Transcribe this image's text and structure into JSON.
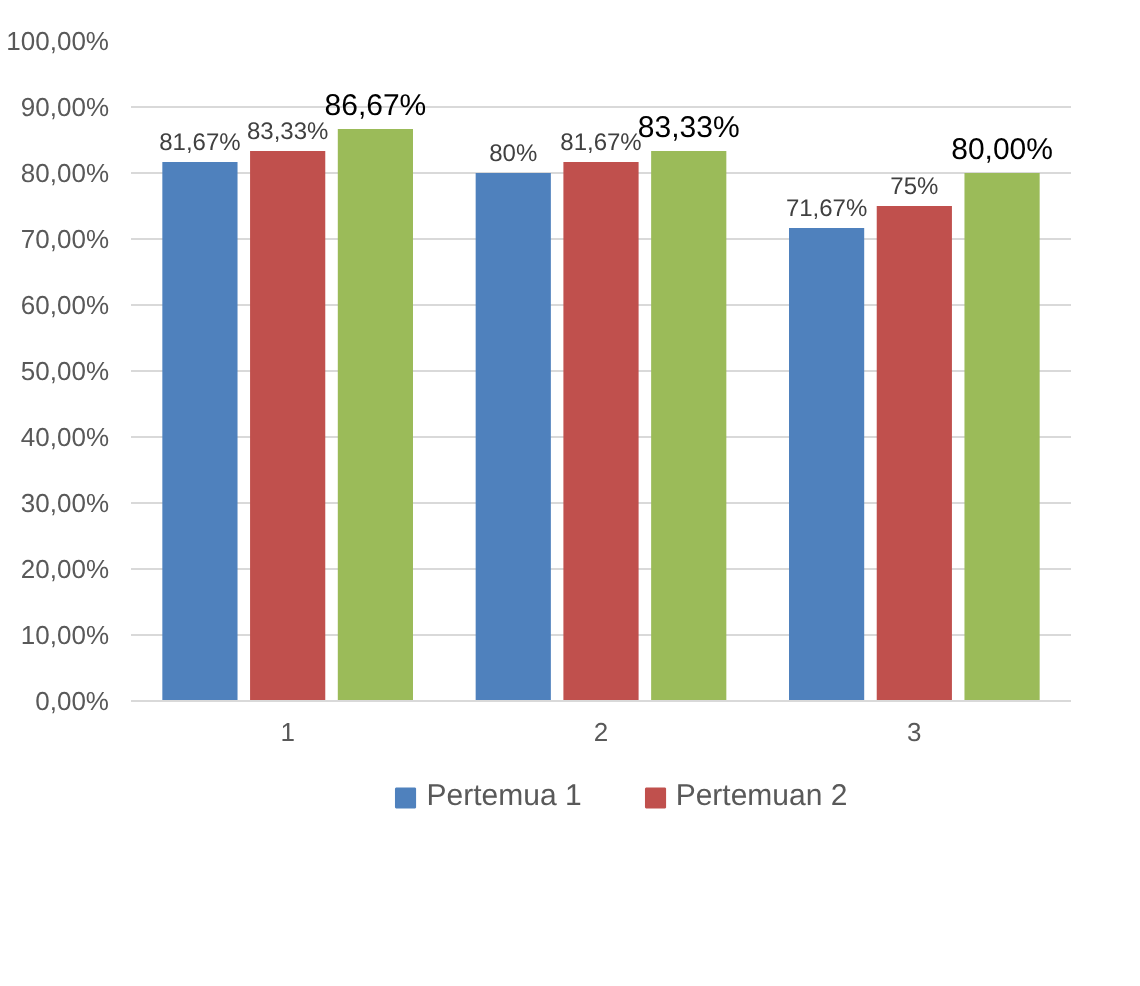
{
  "chart_data": {
    "type": "bar",
    "categories": [
      "1",
      "2",
      "3"
    ],
    "ylim": [
      0,
      100
    ],
    "yticks": [
      {
        "value": 0,
        "label": "0,00%"
      },
      {
        "value": 10,
        "label": "10,00%"
      },
      {
        "value": 20,
        "label": "20,00%"
      },
      {
        "value": 30,
        "label": "30,00%"
      },
      {
        "value": 40,
        "label": "40,00%"
      },
      {
        "value": 50,
        "label": "50,00%"
      },
      {
        "value": 60,
        "label": "60,00%"
      },
      {
        "value": 70,
        "label": "70,00%"
      },
      {
        "value": 80,
        "label": "80,00%"
      },
      {
        "value": 90,
        "label": "90,00%"
      },
      {
        "value": 100,
        "label": "100,00%"
      }
    ],
    "grid": "y",
    "legend": "bottom",
    "series": [
      {
        "name": "Pertemua 1",
        "color": "#4f81bd",
        "values": [
          81.67,
          80,
          71.67
        ],
        "value_labels": [
          "81,67%",
          "80%",
          "71,67%"
        ]
      },
      {
        "name": "Pertemuan 2",
        "color": "#c0504d",
        "values": [
          83.33,
          81.67,
          75
        ],
        "value_labels": [
          "83,33%",
          "81,67%",
          "75%"
        ]
      },
      {
        "color": "#9bbb59",
        "values": [
          86.67,
          83.33,
          80
        ],
        "value_labels": [
          "86,67%",
          "83,33%",
          "80,00%"
        ]
      }
    ]
  }
}
